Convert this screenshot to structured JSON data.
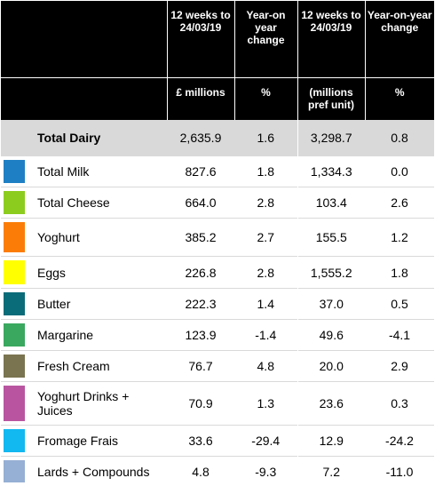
{
  "header": {
    "period_1": "12 weeks to 24/03/19",
    "change_1": "Year-on year change",
    "period_2": "12 weeks to 24/03/19",
    "change_2": "Year-on-year change",
    "unit_1": "£ millions",
    "unit_change_1": "%",
    "unit_2": "(millions pref unit)",
    "unit_change_2": "%"
  },
  "rows": [
    {
      "name": "Total Dairy",
      "value": "2,635.9",
      "change": "1.6",
      "units": "3,298.7",
      "units_change": "0.8",
      "color": "#d9d9d9"
    },
    {
      "name": "Total Milk",
      "value": "827.6",
      "change": "1.8",
      "units": "1,334.3",
      "units_change": "0.0",
      "color": "#1f7fc4"
    },
    {
      "name": "Total Cheese",
      "value": "664.0",
      "change": "2.8",
      "units": "103.4",
      "units_change": "2.6",
      "color": "#8ccc1f"
    },
    {
      "name": "Yoghurt",
      "value": "385.2",
      "change": "2.7",
      "units": "155.5",
      "units_change": "1.2",
      "color": "#fb7d07"
    },
    {
      "name": "Eggs",
      "value": "226.8",
      "change": "2.8",
      "units": "1,555.2",
      "units_change": "1.8",
      "color": "#ffff00"
    },
    {
      "name": "Butter",
      "value": "222.3",
      "change": "1.4",
      "units": "37.0",
      "units_change": "0.5",
      "color": "#0b6c79"
    },
    {
      "name": "Margarine",
      "value": "123.9",
      "change": "-1.4",
      "units": "49.6",
      "units_change": "-4.1",
      "color": "#3aa85f"
    },
    {
      "name": "Fresh Cream",
      "value": "76.7",
      "change": "4.8",
      "units": "20.0",
      "units_change": "2.9",
      "color": "#7a7450"
    },
    {
      "name": "Yoghurt Drinks + Juices",
      "value": "70.9",
      "change": "1.3",
      "units": "23.6",
      "units_change": "0.3",
      "color": "#b955a0"
    },
    {
      "name": "Fromage Frais",
      "value": "33.6",
      "change": "-29.4",
      "units": "12.9",
      "units_change": "-24.2",
      "color": "#12b8f0"
    },
    {
      "name": "Lards + Compounds",
      "value": "4.8",
      "change": "-9.3",
      "units": "7.2",
      "units_change": "-11.0",
      "color": "#96afd4"
    }
  ]
}
